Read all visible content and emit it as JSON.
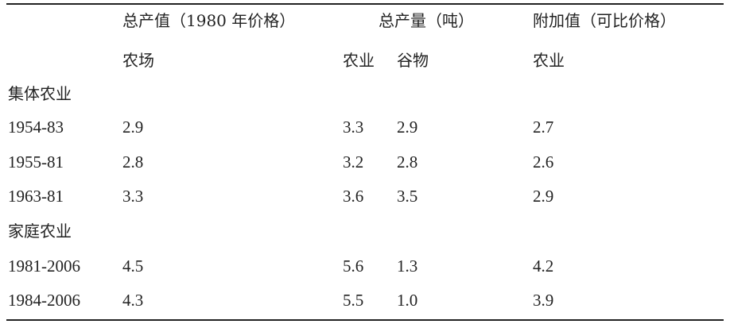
{
  "table": {
    "header": {
      "group1": "总产值（1980 年价格）",
      "group2": "总产量（吨）",
      "group3": "附加值（可比价格）",
      "sub1": "农场",
      "sub2a": "农业",
      "sub2b": "谷物",
      "sub3": "农业"
    },
    "sections": [
      {
        "label": "集体农业",
        "rows": [
          {
            "period": "1954-83",
            "gross_value": "2.9",
            "output_agri": "3.3",
            "output_grain": "2.9",
            "value_added": "2.7"
          },
          {
            "period": "1955-81",
            "gross_value": "2.8",
            "output_agri": "3.2",
            "output_grain": "2.8",
            "value_added": "2.6"
          },
          {
            "period": "1963-81",
            "gross_value": "3.3",
            "output_agri": "3.6",
            "output_grain": "3.5",
            "value_added": "2.9"
          }
        ]
      },
      {
        "label": "家庭农业",
        "rows": [
          {
            "period": "1981-2006",
            "gross_value": "4.5",
            "output_agri": "5.6",
            "output_grain": "1.3",
            "value_added": "4.2"
          },
          {
            "period": "1984-2006",
            "gross_value": "4.3",
            "output_agri": "5.5",
            "output_grain": "1.0",
            "value_added": "3.9"
          }
        ]
      }
    ]
  }
}
